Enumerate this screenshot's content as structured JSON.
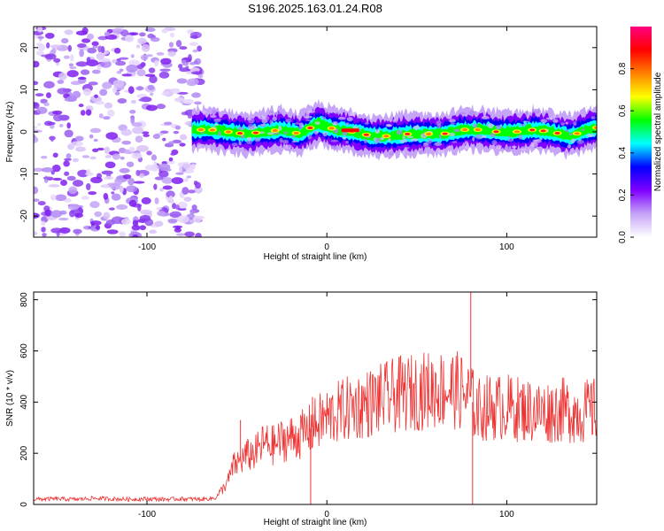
{
  "title": "S196.2025.163.01.24.R08",
  "chart_data": [
    {
      "type": "heatmap",
      "xlabel": "Height of straight line (km)",
      "ylabel": "Frequency (Hz)",
      "xlim": [
        -163,
        150
      ],
      "ylim": [
        -25,
        25
      ],
      "xticks": [
        -100,
        0,
        100
      ],
      "yticks": [
        -20,
        -10,
        0,
        10,
        20
      ],
      "grid": false,
      "colorbar": {
        "label": "Normalized spectral amplitude",
        "range": [
          0,
          1
        ],
        "ticks": [
          "0.0",
          "0.2",
          "0.4",
          "0.6",
          "0.8"
        ],
        "colors": [
          "#ffffff",
          "#c6a4f7",
          "#7f00ff",
          "#0000ff",
          "#00ffff",
          "#00ff00",
          "#ffff00",
          "#ff8000",
          "#ff0000",
          "#ff0080"
        ]
      },
      "noise_region_x": [
        -163,
        -70
      ],
      "band_center_x": [
        -75,
        -65,
        -55,
        -45,
        -35,
        -25,
        -15,
        -5,
        5,
        15,
        25,
        35,
        45,
        55,
        65,
        75,
        85,
        95,
        105,
        115,
        125,
        135,
        145,
        150
      ],
      "band_center_y": [
        0.5,
        0.5,
        0,
        -0.5,
        0,
        0.5,
        -0.5,
        2,
        0.5,
        0,
        -1,
        -1,
        -0.5,
        -0.5,
        -0.5,
        0.5,
        0.5,
        0,
        0,
        0.5,
        0,
        -1,
        0.5,
        1
      ]
    },
    {
      "type": "line",
      "xlabel": "Height of straight line (km)",
      "ylabel": "SNR (10 * v/v)",
      "xlim": [
        -163,
        150
      ],
      "ylim": [
        0,
        830
      ],
      "xticks": [
        -100,
        0,
        100
      ],
      "yticks": [
        0,
        200,
        400,
        600,
        800
      ],
      "grid": false,
      "series": [
        {
          "color": "#ee3333",
          "x": [
            -163,
            -150,
            -140,
            -130,
            -120,
            -110,
            -100,
            -90,
            -80,
            -70,
            -62,
            -58,
            -55,
            -52,
            -48,
            -45,
            -40,
            -35,
            -30,
            -25,
            -20,
            -15,
            -10,
            -5,
            0,
            10,
            20,
            30,
            40,
            50,
            60,
            70,
            75,
            78,
            80,
            82,
            85,
            90,
            100,
            110,
            120,
            130,
            140,
            150
          ],
          "y": [
            20,
            22,
            20,
            24,
            22,
            20,
            22,
            20,
            22,
            20,
            25,
            60,
            90,
            150,
            170,
            190,
            200,
            240,
            230,
            250,
            260,
            270,
            290,
            320,
            340,
            370,
            390,
            410,
            430,
            440,
            450,
            450,
            440,
            420,
            420,
            380,
            370,
            380,
            380,
            370,
            360,
            370,
            360,
            370
          ]
        }
      ],
      "spikes": [
        {
          "x": -48,
          "y": 330
        },
        {
          "x": -8,
          "y": 420
        },
        {
          "x": 80,
          "y": 830
        },
        {
          "x": 81,
          "y": 0
        },
        {
          "x": -9,
          "y": 0
        }
      ]
    }
  ]
}
